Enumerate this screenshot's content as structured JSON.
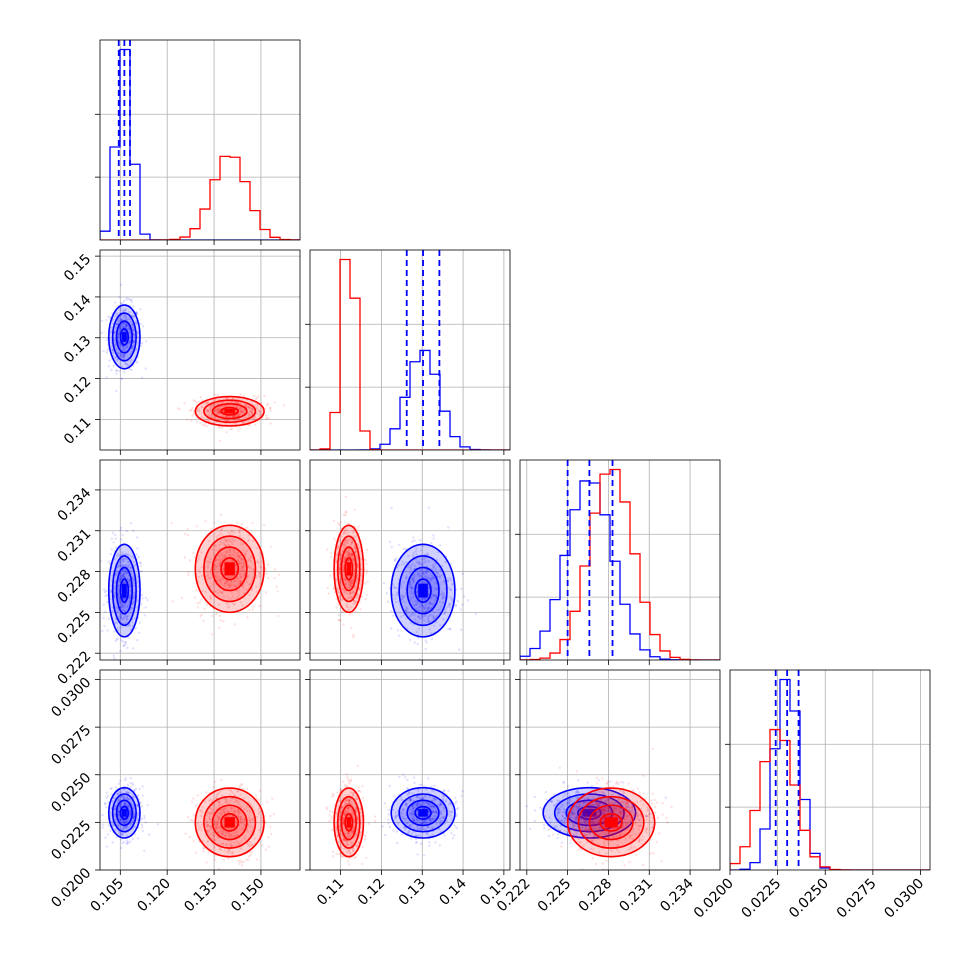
{
  "chart_data": {
    "type": "corner",
    "title": "",
    "parameters": [
      {
        "ticks": [
          0.105,
          0.12,
          0.135,
          0.15
        ],
        "tick_labels": [
          "0.105",
          "0.120",
          "0.135",
          "0.150"
        ],
        "range": [
          0.0985,
          0.1625
        ]
      },
      {
        "ticks": [
          0.11,
          0.12,
          0.13,
          0.14,
          0.15
        ],
        "tick_labels": [
          "0.11",
          "0.12",
          "0.13",
          "0.14",
          "0.15"
        ],
        "range": [
          0.1025,
          0.1515
        ]
      },
      {
        "ticks": [
          0.222,
          0.225,
          0.228,
          0.231,
          0.234
        ],
        "tick_labels": [
          "0.222",
          "0.225",
          "0.228",
          "0.231",
          "0.234"
        ],
        "range": [
          0.2215,
          0.2362
        ]
      },
      {
        "ticks": [
          0.02,
          0.0225,
          0.025,
          0.0275,
          0.03
        ],
        "tick_labels": [
          "0.0200",
          "0.0225",
          "0.0250",
          "0.0275",
          "0.0300"
        ],
        "range": [
          0.02,
          0.0305
        ]
      }
    ],
    "series": [
      {
        "color": "#0000ff",
        "mean": [
          0.1063,
          0.1302,
          0.2266,
          0.023
        ],
        "sigma": [
          0.0025,
          0.0039,
          0.0017,
          0.00066
        ],
        "quantiles": [
          [
            0.1045,
            0.1063,
            0.1081
          ],
          [
            0.1262,
            0.1302,
            0.1342
          ],
          [
            0.225,
            0.2266,
            0.2283
          ],
          [
            0.0224,
            0.023,
            0.0236
          ]
        ]
      },
      {
        "color": "#ff0000",
        "mean": [
          0.14,
          0.112,
          0.2282,
          0.0225
        ],
        "sigma": [
          0.0055,
          0.0018,
          0.0016,
          0.0009
        ]
      }
    ],
    "quantile_line_color": "#0000ff",
    "grid": true,
    "legend": "none"
  }
}
